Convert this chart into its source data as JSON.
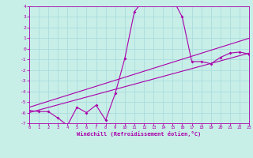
{
  "xlabel": "Windchill (Refroidissement éolien,°C)",
  "bg_color": "#c8eee8",
  "grid_color": "#aadddd",
  "line_color": "#aa00aa",
  "spine_color": "#aa00aa",
  "xmin": 0,
  "xmax": 23,
  "ymin": -7,
  "ymax": 4,
  "yticks": [
    -7,
    -6,
    -5,
    -4,
    -3,
    -2,
    -1,
    0,
    1,
    2,
    3,
    4
  ],
  "xticks": [
    0,
    1,
    2,
    3,
    4,
    5,
    6,
    7,
    8,
    9,
    10,
    11,
    12,
    13,
    14,
    15,
    16,
    17,
    18,
    19,
    20,
    21,
    22,
    23
  ],
  "line1_x": [
    0,
    1,
    2,
    3,
    4,
    5,
    6,
    7,
    8,
    9,
    10,
    11,
    12,
    13,
    14,
    15,
    16,
    17,
    18,
    19,
    20,
    21,
    22,
    23
  ],
  "line1_y": [
    -5.8,
    -5.9,
    -5.9,
    -6.5,
    -7.2,
    -5.5,
    -6.0,
    -5.3,
    -6.7,
    -4.2,
    -0.9,
    3.5,
    4.6,
    4.7,
    4.7,
    4.7,
    3.0,
    -1.2,
    -1.2,
    -1.4,
    -0.8,
    -0.4,
    -0.3,
    -0.5
  ],
  "line2_x": [
    0,
    23
  ],
  "line2_y": [
    -6.0,
    -0.4
  ],
  "line3_x": [
    0,
    23
  ],
  "line3_y": [
    -5.5,
    1.0
  ]
}
